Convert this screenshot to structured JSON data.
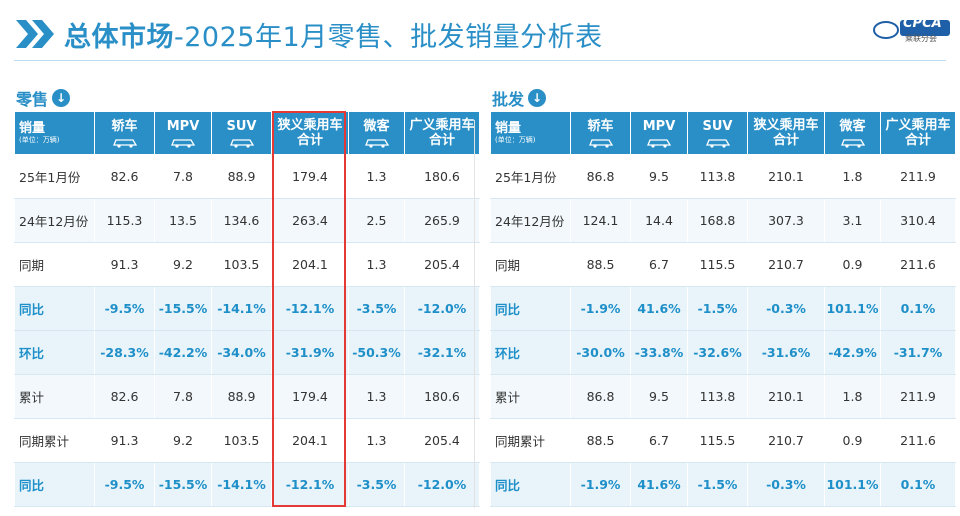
{
  "title": {
    "main": "总体市场",
    "rest": "-2025年1月零售、批发销量分析表"
  },
  "logo": {
    "text": "CPCA",
    "sub": "乘联分会"
  },
  "retail": {
    "label": "零售",
    "header": {
      "first": "销量",
      "unit": "(单位：万辆)",
      "cols": [
        "轿车",
        "MPV",
        "SUV",
        "狭义乘用车\n合计",
        "微客",
        "广义乘用车\n合计"
      ]
    },
    "rows": [
      {
        "label": "25年1月份",
        "values": [
          "82.6",
          "7.8",
          "88.9",
          "179.4",
          "1.3",
          "180.6"
        ]
      },
      {
        "label": "24年12月份",
        "values": [
          "115.3",
          "13.5",
          "134.6",
          "263.4",
          "2.5",
          "265.9"
        ]
      },
      {
        "label": "同期",
        "values": [
          "91.3",
          "9.2",
          "103.5",
          "204.1",
          "1.3",
          "205.4"
        ]
      },
      {
        "label": "同比",
        "values": [
          "-9.5%",
          "-15.5%",
          "-14.1%",
          "-12.1%",
          "-3.5%",
          "-12.0%"
        ]
      },
      {
        "label": "环比",
        "values": [
          "-28.3%",
          "-42.2%",
          "-34.0%",
          "-31.9%",
          "-50.3%",
          "-32.1%"
        ]
      },
      {
        "label": "累计",
        "values": [
          "82.6",
          "7.8",
          "88.9",
          "179.4",
          "1.3",
          "180.6"
        ]
      },
      {
        "label": "同期累计",
        "values": [
          "91.3",
          "9.2",
          "103.5",
          "204.1",
          "1.3",
          "205.4"
        ]
      },
      {
        "label": "同比",
        "values": [
          "-9.5%",
          "-15.5%",
          "-14.1%",
          "-12.1%",
          "-3.5%",
          "-12.0%"
        ]
      }
    ]
  },
  "wholesale": {
    "label": "批发",
    "header": {
      "first": "销量",
      "unit": "(单位：万辆)",
      "cols": [
        "轿车",
        "MPV",
        "SUV",
        "狭义乘用车\n合计",
        "微客",
        "广义乘用车\n合计"
      ]
    },
    "rows": [
      {
        "label": "25年1月份",
        "values": [
          "86.8",
          "9.5",
          "113.8",
          "210.1",
          "1.8",
          "211.9"
        ]
      },
      {
        "label": "24年12月份",
        "values": [
          "124.1",
          "14.4",
          "168.8",
          "307.3",
          "3.1",
          "310.4"
        ]
      },
      {
        "label": "同期",
        "values": [
          "88.5",
          "6.7",
          "115.5",
          "210.7",
          "0.9",
          "211.6"
        ]
      },
      {
        "label": "同比",
        "values": [
          "-1.9%",
          "41.6%",
          "-1.5%",
          "-0.3%",
          "101.1%",
          "0.1%"
        ]
      },
      {
        "label": "环比",
        "values": [
          "-30.0%",
          "-33.8%",
          "-32.6%",
          "-31.6%",
          "-42.9%",
          "-31.7%"
        ]
      },
      {
        "label": "累计",
        "values": [
          "86.8",
          "9.5",
          "113.8",
          "210.1",
          "1.8",
          "211.9"
        ]
      },
      {
        "label": "同期累计",
        "values": [
          "88.5",
          "6.7",
          "115.5",
          "210.7",
          "0.9",
          "211.6"
        ]
      },
      {
        "label": "同比",
        "values": [
          "-1.9%",
          "41.6%",
          "-1.5%",
          "-0.3%",
          "101.1%",
          "0.1%"
        ]
      }
    ]
  },
  "pct_rows": [
    3,
    4,
    7
  ],
  "colors": {
    "accent": "#2a8fc7",
    "highlight": "#e53935"
  }
}
